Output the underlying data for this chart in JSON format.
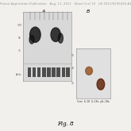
{
  "header_text": "Patent Application Publication   Aug. 11, 2011   Sheet 9 of 10   US 2011/0195494 A1",
  "fig_label": "Fig. 8",
  "panel_A_label": "A",
  "panel_B_label": "B",
  "bg_color": "#f2f0ed",
  "blot_bg_A": "#d8d8d8",
  "blot_bg_B": "#e0e0e0",
  "band_dark": "#1a1a1a",
  "actin_dark": "#2a2a2a",
  "caption_B": "Cont  IL-18  IL-18α  pIL-18α",
  "header_fontsize": 2.8,
  "label_fontsize": 4.5,
  "marker_fontsize": 2.2,
  "caption_fontsize": 2.2,
  "fig_label_fontsize": 5.0
}
